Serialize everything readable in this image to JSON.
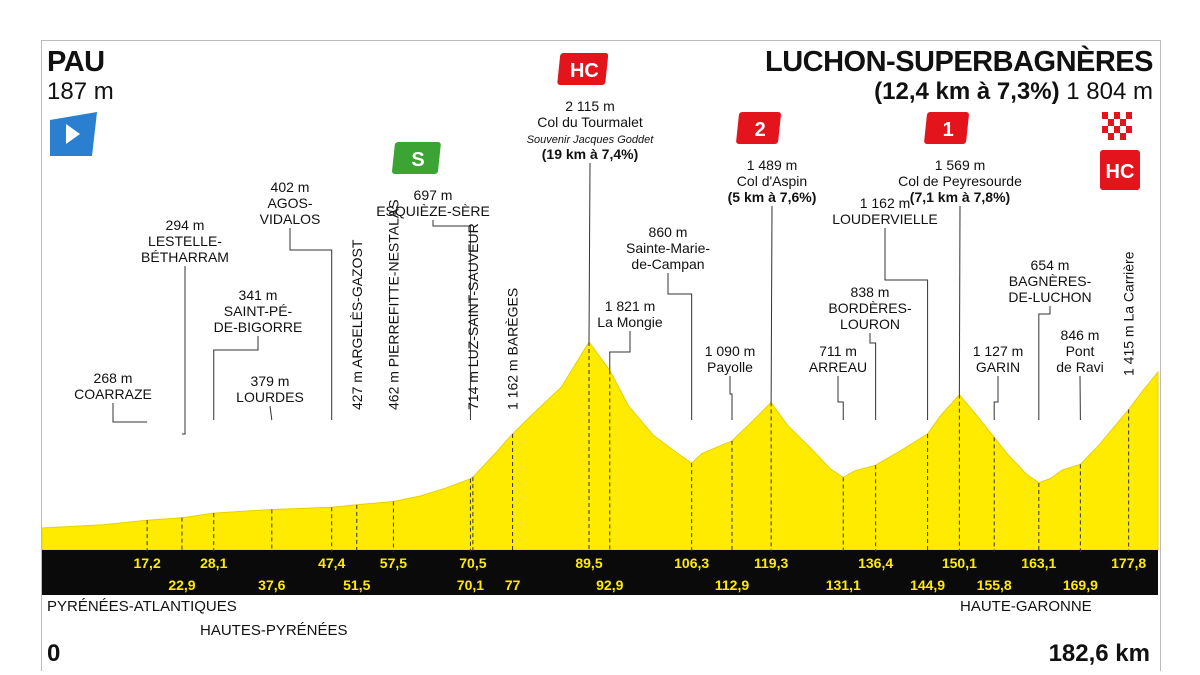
{
  "header": {
    "start_town": "PAU",
    "start_altitude": "187 m",
    "finish_town": "LUCHON-SUPERBAGNÈRES",
    "finish_climb": "(12,4 km à 7,3%)",
    "finish_altitude": "1 804 m"
  },
  "footer": {
    "start_km": "0",
    "total_km": "182,6 km",
    "departments": [
      "PYRÉNÉES-ATLANTIQUES",
      "HAUTES-PYRÉNÉES",
      "HAUTE-GARONNE"
    ]
  },
  "colors": {
    "profile_fill": "#ffeb00",
    "band": "#0a0a0a",
    "km_text": "#ffeb00",
    "category_badge": "#e3141b",
    "sprint_badge": "#3ca335",
    "start_flag": "#2a7fd1"
  },
  "chart_data": {
    "type": "area",
    "title": "PAU – LUCHON-SUPERBAGNÈRES",
    "xlabel": "",
    "ylabel": "",
    "xlim": [
      0,
      182.6
    ],
    "grid": false,
    "profile": {
      "x": [
        0,
        10,
        17.2,
        22.9,
        28.1,
        37.6,
        47.4,
        51.5,
        57.5,
        62,
        66,
        70.1,
        70.5,
        74,
        77,
        80,
        85,
        89.5,
        92.9,
        96,
        100,
        104,
        106.3,
        108,
        112.9,
        116,
        119.3,
        122,
        126,
        129,
        131.1,
        133,
        136.4,
        140,
        144.9,
        147,
        150.1,
        153,
        155.8,
        158,
        161,
        163.1,
        165,
        167,
        169.9,
        173,
        177.8,
        180,
        182.6
      ],
      "y": [
        187,
        220,
        268,
        294,
        341,
        379,
        402,
        427,
        462,
        520,
        600,
        697,
        714,
        950,
        1162,
        1350,
        1650,
        2115,
        1821,
        1450,
        1150,
        960,
        860,
        960,
        1090,
        1280,
        1489,
        1250,
        1000,
        800,
        711,
        780,
        838,
        970,
        1162,
        1350,
        1569,
        1350,
        1127,
        950,
        750,
        654,
        700,
        790,
        846,
        1050,
        1415,
        1600,
        1804
      ]
    },
    "points": [
      {
        "km": 17.2,
        "km_label": "17,2",
        "alt": 268,
        "labels": [
          "268 m",
          "COARRAZE"
        ]
      },
      {
        "km": 22.9,
        "km_label": "22,9",
        "alt": 294,
        "labels": [
          "294 m",
          "LESTELLE-",
          "BÉTHARRAM"
        ]
      },
      {
        "km": 28.1,
        "km_label": "28,1",
        "alt": 341,
        "labels": [
          "341 m",
          "SAINT-PÉ-",
          "DE-BIGORRE"
        ]
      },
      {
        "km": 37.6,
        "km_label": "37,6",
        "alt": 379,
        "labels": [
          "379 m",
          "LOURDES"
        ]
      },
      {
        "km": 47.4,
        "km_label": "47,4",
        "alt": 402,
        "labels": [
          "402 m",
          "AGOS-",
          "VIDALOS"
        ]
      },
      {
        "km": 51.5,
        "km_label": "51,5",
        "alt": 427,
        "labels": [
          "427 m ARGELÈS-GAZOST"
        ]
      },
      {
        "km": 57.5,
        "km_label": "57,5",
        "alt": 462,
        "labels": [
          "462 m PIERREFITTE-NESTALAS"
        ]
      },
      {
        "km": 70.1,
        "km_label": "70,1",
        "alt": 697,
        "labels": [
          "697 m",
          "ESQUIÈZE-SÈRE"
        ],
        "badge": "S"
      },
      {
        "km": 70.5,
        "km_label": "70,5",
        "alt": 714,
        "labels": [
          "714 m LUZ-SAINT-SAUVEUR"
        ]
      },
      {
        "km": 77,
        "km_label": "77",
        "alt": 1162,
        "labels": [
          "1 162 m BARÈGES"
        ]
      },
      {
        "km": 89.5,
        "km_label": "89,5",
        "alt": 2115,
        "labels": [
          "2 115 m",
          "Col du Tourmalet",
          "Souvenir Jacques Goddet",
          "(19 km à 7,4%)"
        ],
        "badge": "HC"
      },
      {
        "km": 92.9,
        "km_label": "92,9",
        "alt": 1821,
        "labels": [
          "1 821 m",
          "La Mongie"
        ]
      },
      {
        "km": 106.3,
        "km_label": "106,3",
        "alt": 860,
        "labels": [
          "860 m",
          "Sainte-Marie-",
          "de-Campan"
        ]
      },
      {
        "km": 112.9,
        "km_label": "112,9",
        "alt": 1090,
        "labels": [
          "1 090 m",
          "Payolle"
        ]
      },
      {
        "km": 119.3,
        "km_label": "119,3",
        "alt": 1489,
        "labels": [
          "1 489 m",
          "Col d'Aspin",
          "(5 km à 7,6%)"
        ],
        "badge": "2"
      },
      {
        "km": 131.1,
        "km_label": "131,1",
        "alt": 711,
        "labels": [
          "711 m",
          "ARREAU"
        ]
      },
      {
        "km": 136.4,
        "km_label": "136,4",
        "alt": 838,
        "labels": [
          "838 m",
          "BORDÈRES-",
          "LOURON"
        ]
      },
      {
        "km": 144.9,
        "km_label": "144,9",
        "alt": 1162,
        "labels": [
          "1 162 m",
          "LOUDERVIELLE"
        ]
      },
      {
        "km": 150.1,
        "km_label": "150,1",
        "alt": 1569,
        "labels": [
          "1 569 m",
          "Col de Peyresourde",
          "(7,1 km à 7,8%)"
        ],
        "badge": "1"
      },
      {
        "km": 155.8,
        "km_label": "155,8",
        "alt": 1127,
        "labels": [
          "1 127 m",
          "GARIN"
        ]
      },
      {
        "km": 163.1,
        "km_label": "163,1",
        "alt": 654,
        "labels": [
          "654 m",
          "BAGNÈRES-",
          "DE-LUCHON"
        ]
      },
      {
        "km": 169.9,
        "km_label": "169,9",
        "alt": 846,
        "labels": [
          "846 m",
          "Pont",
          "de Ravi"
        ]
      },
      {
        "km": 177.8,
        "km_label": "177,8",
        "alt": 1415,
        "labels": [
          "1 415 m La Carrière"
        ]
      },
      {
        "km": 182.6,
        "km_label": "",
        "alt": 1804,
        "labels": [],
        "badge": "HC",
        "finish": true
      }
    ]
  }
}
